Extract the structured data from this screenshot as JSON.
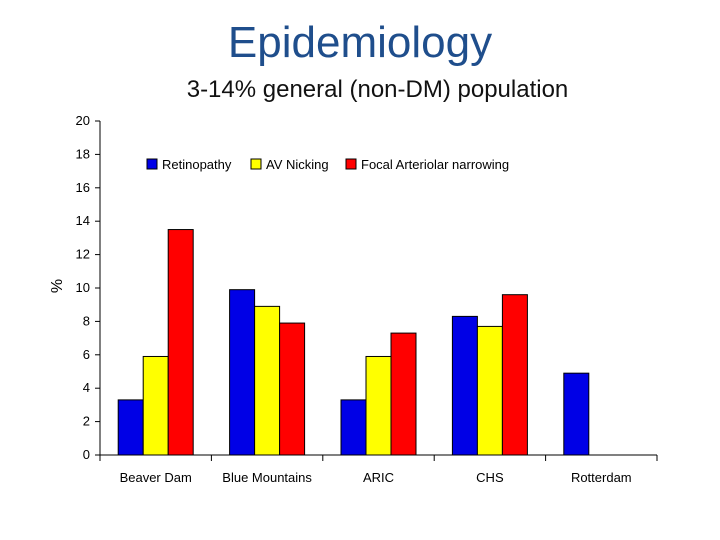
{
  "slide": {
    "title": "Epidemiology",
    "subtitle": "3-14% general (non-DM) population"
  },
  "chart_data": {
    "type": "bar",
    "title": "",
    "xlabel": "",
    "ylabel": "%",
    "ylim": [
      0,
      20
    ],
    "yticks": [
      0,
      2,
      4,
      6,
      8,
      10,
      12,
      14,
      16,
      18,
      20
    ],
    "categories": [
      "Beaver Dam",
      "Blue Mountains",
      "ARIC",
      "CHS",
      "Rotterdam"
    ],
    "series": [
      {
        "name": "Retinopathy",
        "color": "#0000e6",
        "values": [
          3.3,
          9.9,
          3.3,
          8.3,
          4.9
        ]
      },
      {
        "name": "AV Nicking",
        "color": "#ffff00",
        "values": [
          5.9,
          8.9,
          5.9,
          7.7,
          null
        ]
      },
      {
        "name": "Focal Arteriolar narrowing",
        "color": "#ff0000",
        "values": [
          13.5,
          7.9,
          7.3,
          9.6,
          null
        ]
      }
    ],
    "legend_position": "top"
  }
}
